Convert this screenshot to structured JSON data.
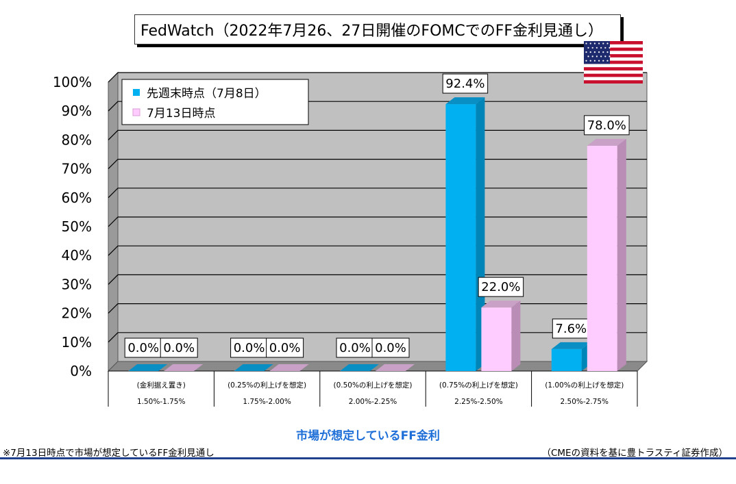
{
  "chart_data": {
    "type": "bar",
    "title": "FedWatch（2022年7月26、27日開催のFOMCでのFF金利見通し）",
    "categories": [
      [
        "(金利据え置き)",
        "1.50%-1.75%"
      ],
      [
        "(0.25%の利上げを想定)",
        "1.75%-2.00%"
      ],
      [
        "(0.50%の利上げを想定)",
        "2.00%-2.25%"
      ],
      [
        "(0.75%の利上げを想定)",
        "2.25%-2.50%"
      ],
      [
        "(1.00%の利上げを想定)",
        "2.50%-2.75%"
      ]
    ],
    "series": [
      {
        "name": "先週末時点（7月8日）",
        "values": [
          0.0,
          0.0,
          0.0,
          92.4,
          7.6
        ],
        "labels": [
          "0.0%",
          "0.0%",
          "0.0%",
          "92.4%",
          "7.6%"
        ]
      },
      {
        "name": "7月13日時点",
        "values": [
          0.0,
          0.0,
          0.0,
          22.0,
          78.0
        ],
        "labels": [
          "0.0%",
          "0.0%",
          "0.0%",
          "22.0%",
          "78.0%"
        ]
      }
    ],
    "xlabel": "市場が想定しているFF金利",
    "ylim": [
      0,
      100
    ],
    "yticks": [
      "0%",
      "10%",
      "20%",
      "30%",
      "40%",
      "50%",
      "60%",
      "70%",
      "80%",
      "90%",
      "100%"
    ],
    "grid": true,
    "legend": "top-left"
  },
  "colors": {
    "series1": "#00b0f0",
    "series1_side": "#0085b8",
    "series1_top": "#0a8fc4",
    "series2": "#ffccff",
    "series2_side": "#b98db5",
    "series2_top": "#c9a0c6",
    "plot_back": "#c0c0c0",
    "plot_wall": "#9a9a9a",
    "plot_floor": "#8a8a8a",
    "xlabel": "#1e6ed8",
    "rule": "#1f3f8f"
  },
  "flag_icon": "us-flag-icon",
  "footnote": "※7月13日時点で市場が想定しているFF金利見通し",
  "source": "（CMEの資料を基に豊トラスティ証券作成）"
}
